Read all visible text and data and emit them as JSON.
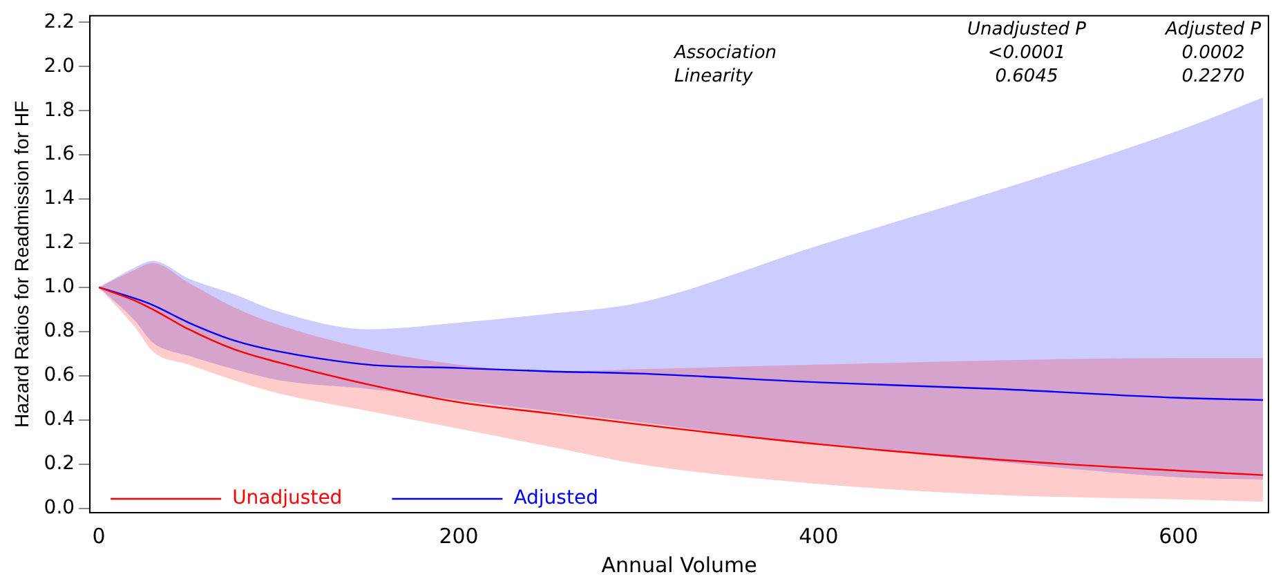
{
  "chart_data": {
    "type": "line",
    "xlabel": "Annual Volume",
    "ylabel": "Hazard Ratios for Readmission for HF",
    "annotations": [
      "Unadjusted P",
      "Adjusted P",
      "Association",
      "<0.0001",
      "0.0002",
      "Linearity",
      "0.6045",
      "0.2270"
    ],
    "x": [
      0,
      20,
      30,
      50,
      75,
      100,
      150,
      200,
      250,
      300,
      400,
      500,
      600,
      647
    ],
    "series": [
      {
        "name": "Unadjusted",
        "color": "#ff0000",
        "values": [
          1.0,
          0.94,
          0.9,
          0.81,
          0.72,
          0.66,
          0.56,
          0.48,
          0.43,
          0.38,
          0.29,
          0.22,
          0.17,
          0.15
        ],
        "lower": [
          1.0,
          0.82,
          0.71,
          0.65,
          0.58,
          0.52,
          0.44,
          0.36,
          0.28,
          0.2,
          0.11,
          0.06,
          0.04,
          0.03
        ],
        "upper": [
          1.0,
          1.08,
          1.11,
          1.02,
          0.91,
          0.83,
          0.72,
          0.65,
          0.62,
          0.63,
          0.65,
          0.67,
          0.68,
          0.68
        ]
      },
      {
        "name": "Adjusted",
        "color": "#0000ff",
        "values": [
          1.0,
          0.95,
          0.92,
          0.84,
          0.76,
          0.71,
          0.65,
          0.635,
          0.62,
          0.61,
          0.57,
          0.54,
          0.5,
          0.49
        ],
        "lower": [
          1.0,
          0.85,
          0.75,
          0.69,
          0.63,
          0.58,
          0.54,
          0.49,
          0.44,
          0.39,
          0.29,
          0.21,
          0.14,
          0.13
        ],
        "upper": [
          1.0,
          1.09,
          1.12,
          1.04,
          0.97,
          0.89,
          0.81,
          0.84,
          0.88,
          0.93,
          1.19,
          1.44,
          1.71,
          1.86
        ]
      }
    ],
    "xlim": [
      -5,
      650
    ],
    "ylim": [
      -0.02,
      2.23
    ],
    "xticks": [
      0,
      200,
      400,
      600
    ],
    "yticks": [
      {
        "value": 0,
        "label": "0.0"
      },
      {
        "value": 0.2,
        "label": "0.2"
      },
      {
        "value": 0.4,
        "label": "0.4"
      },
      {
        "value": 0.6,
        "label": "0.6"
      },
      {
        "value": 0.8,
        "label": "0.8"
      },
      {
        "value": 1.0,
        "label": "1.0"
      },
      {
        "value": 1.2,
        "label": "1.2"
      },
      {
        "value": 1.4,
        "label": "1.4"
      },
      {
        "value": 1.6,
        "label": "1.6"
      },
      {
        "value": 1.8,
        "label": "1.8"
      },
      {
        "value": 2.0,
        "label": "2.0"
      },
      {
        "value": 2.2,
        "label": "2.2"
      }
    ],
    "legend": "bottom left",
    "marker": "none",
    "line_style": "solid",
    "grid": false
  }
}
